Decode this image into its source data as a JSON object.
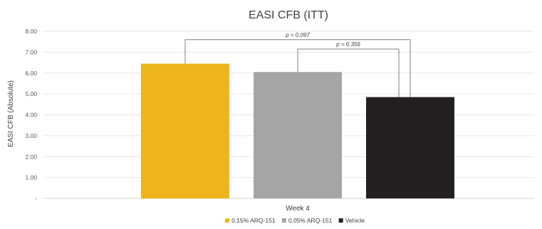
{
  "chart_data": {
    "type": "bar",
    "title": "EASI CFB (ITT)",
    "ylabel": "EASI CFB (Absolute)",
    "xlabel": "",
    "categories": [
      "Week 4"
    ],
    "ylim": [
      0,
      8
    ],
    "y_ticks": [
      "-",
      "1.00",
      "2.00",
      "3.00",
      "4.00",
      "5.00",
      "6.00",
      "7.00",
      "8.00"
    ],
    "grid": true,
    "legend_position": "bottom",
    "series": [
      {
        "name": "0.15% ARQ-151",
        "values": [
          6.45
        ],
        "color": "#EDB51B"
      },
      {
        "name": "0.05% ARQ-151",
        "values": [
          6.05
        ],
        "color": "#A5A5A5"
      },
      {
        "name": "Vehicle",
        "values": [
          4.85
        ],
        "color": "#231F20"
      }
    ],
    "annotations": [
      {
        "text": "p = 0.097",
        "from": "0.15% ARQ-151",
        "to": "Vehicle"
      },
      {
        "text": "p = 0.356",
        "from": "0.05% ARQ-151",
        "to": "Vehicle"
      }
    ]
  }
}
